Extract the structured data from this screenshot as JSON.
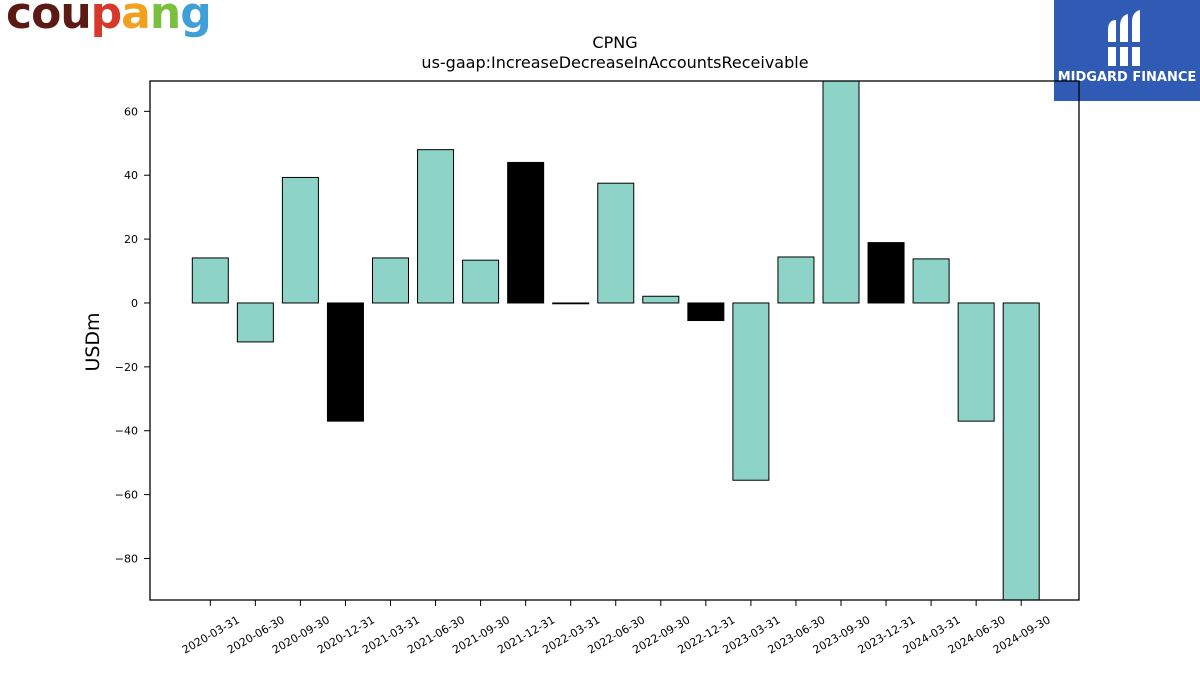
{
  "logos": {
    "left_text": "coupang",
    "left_letters": [
      {
        "ch": "c",
        "color": "#5b1a14"
      },
      {
        "ch": "o",
        "color": "#5b1a14"
      },
      {
        "ch": "u",
        "color": "#5b1a14"
      },
      {
        "ch": "p",
        "color": "#d6382b"
      },
      {
        "ch": "a",
        "color": "#f0a21e"
      },
      {
        "ch": "n",
        "color": "#7bbf3f"
      },
      {
        "ch": "g",
        "color": "#3fa0d8"
      }
    ],
    "right_text": "MIDGARD FINANCE",
    "right_bg": "#2f5bb5"
  },
  "chart_data": {
    "type": "bar",
    "title": "CPNG",
    "subtitle": "us-gaap:IncreaseDecreaseInAccountsReceivable",
    "xlabel": "",
    "ylabel": "USDm",
    "ylim": [
      -93,
      69.5
    ],
    "yticks": [
      -80,
      -60,
      -40,
      -20,
      0,
      20,
      40,
      60
    ],
    "grid": false,
    "categories": [
      "2020-03-31",
      "2020-06-30",
      "2020-09-30",
      "2020-12-31",
      "2021-03-31",
      "2021-06-30",
      "2021-09-30",
      "2021-12-31",
      "2022-03-31",
      "2022-06-30",
      "2022-09-30",
      "2022-12-31",
      "2023-03-31",
      "2023-06-30",
      "2023-09-30",
      "2023-12-31",
      "2024-03-31",
      "2024-06-30",
      "2024-09-30"
    ],
    "values": [
      14.1,
      -12.2,
      39.3,
      -37.0,
      14.1,
      48.0,
      13.4,
      44.0,
      0.0,
      37.5,
      2.1,
      -5.5,
      -55.5,
      14.4,
      70.0,
      18.9,
      13.8,
      -37.0,
      -95.0
    ],
    "bar_colors": [
      "#8dd3c7",
      "#8dd3c7",
      "#8dd3c7",
      "#000000",
      "#8dd3c7",
      "#8dd3c7",
      "#8dd3c7",
      "#000000",
      "#000000",
      "#8dd3c7",
      "#8dd3c7",
      "#000000",
      "#8dd3c7",
      "#8dd3c7",
      "#8dd3c7",
      "#000000",
      "#8dd3c7",
      "#8dd3c7",
      "#8dd3c7"
    ]
  }
}
